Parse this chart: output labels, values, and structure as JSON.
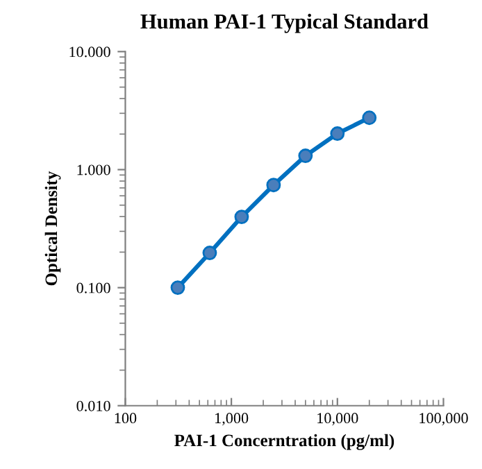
{
  "chart_data": {
    "type": "line",
    "title": "Human PAI-1 Typical Standard",
    "xlabel": "PAI-1 Concerntration (pg/ml)",
    "ylabel": "Optical Density",
    "x": [
      312.5,
      625,
      1250,
      2500,
      5000,
      10000,
      20000
    ],
    "series": [
      {
        "color": "#0070c0",
        "values": [
          0.1,
          0.197,
          0.398,
          0.74,
          1.31,
          2.02,
          2.75
        ]
      }
    ],
    "marker": "circle",
    "line_style": "solid",
    "log": "xy",
    "grid": false,
    "legend": false,
    "xlim": [
      100,
      100000
    ],
    "xticks": [
      100,
      {
        "value": 1000,
        "label": "1,000"
      },
      {
        "value": 10000,
        "label": "10,000"
      },
      {
        "value": 100000,
        "label": "100,000"
      }
    ],
    "ylim": [
      0.01,
      10
    ],
    "yticks": [
      {
        "value": 0.01,
        "label": "0.010"
      },
      {
        "value": 0.1,
        "label": "0.100"
      },
      {
        "value": 1,
        "label": "1.000"
      },
      {
        "value": 10,
        "label": "10.000"
      }
    ]
  }
}
